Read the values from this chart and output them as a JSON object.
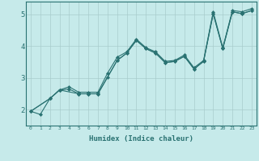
{
  "title": "",
  "xlabel": "Humidex (Indice chaleur)",
  "xlim": [
    -0.5,
    23.5
  ],
  "ylim": [
    1.5,
    5.4
  ],
  "xticks": [
    0,
    1,
    2,
    3,
    4,
    5,
    6,
    7,
    8,
    9,
    10,
    11,
    12,
    13,
    14,
    15,
    16,
    17,
    18,
    19,
    20,
    21,
    22,
    23
  ],
  "yticks": [
    2,
    3,
    4,
    5
  ],
  "bg_color": "#c6eaea",
  "line_color": "#2a7272",
  "grid_color": "#a8cccc",
  "lines": [
    {
      "x": [
        0,
        2,
        3,
        4,
        5,
        6,
        7,
        8,
        9,
        10,
        11,
        12,
        13,
        14,
        15,
        16,
        17,
        18,
        19,
        20,
        21,
        22,
        23
      ],
      "y": [
        1.95,
        2.35,
        2.62,
        2.72,
        2.55,
        2.55,
        2.55,
        3.15,
        3.65,
        3.82,
        4.22,
        3.95,
        3.82,
        3.52,
        3.55,
        3.72,
        3.32,
        3.55,
        5.08,
        3.95,
        5.12,
        5.08,
        5.18
      ]
    },
    {
      "x": [
        0,
        1,
        2,
        3,
        4,
        5,
        6,
        7,
        8,
        9,
        10,
        11,
        12,
        13,
        14,
        15,
        16,
        17,
        18,
        19,
        20,
        21,
        22,
        23
      ],
      "y": [
        1.95,
        1.85,
        2.35,
        2.62,
        2.65,
        2.5,
        2.5,
        2.5,
        3.02,
        3.55,
        3.78,
        4.18,
        3.92,
        3.78,
        3.48,
        3.52,
        3.68,
        3.28,
        3.52,
        5.02,
        3.92,
        5.08,
        5.02,
        5.12
      ]
    },
    {
      "x": [
        0,
        2,
        3,
        5,
        6,
        7,
        9,
        10,
        11,
        12,
        13,
        14,
        15,
        16,
        17,
        18,
        19,
        20,
        21,
        22,
        23
      ],
      "y": [
        1.95,
        2.35,
        2.62,
        2.5,
        2.5,
        2.5,
        3.55,
        3.78,
        4.18,
        3.92,
        3.78,
        3.48,
        3.52,
        3.68,
        3.28,
        3.52,
        5.02,
        3.92,
        5.08,
        5.02,
        5.12
      ]
    }
  ]
}
